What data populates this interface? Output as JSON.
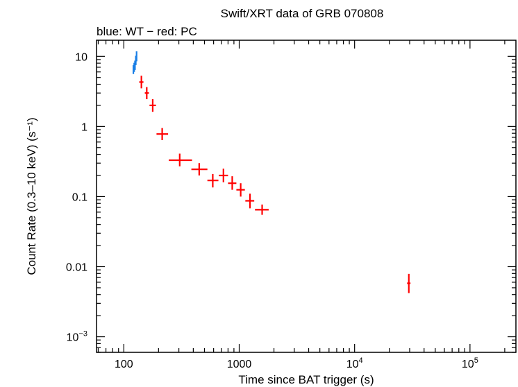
{
  "chart_data": {
    "type": "scatter",
    "title": "Swift/XRT data of GRB 070808",
    "subtitle": "blue: WT − red: PC",
    "xlabel": "Time since BAT trigger (s)",
    "ylabel": "Count Rate (0.3–10 keV) (s⁻¹)",
    "xscale": "log",
    "yscale": "log",
    "xlim": [
      58,
      250000
    ],
    "ylim": [
      0.0006,
      17
    ],
    "x_ticks": [
      {
        "value": 100,
        "base": "100",
        "exp": ""
      },
      {
        "value": 1000,
        "base": "1000",
        "exp": ""
      },
      {
        "value": 10000,
        "base": "10",
        "exp": "4"
      },
      {
        "value": 100000,
        "base": "10",
        "exp": "5"
      }
    ],
    "y_ticks": [
      {
        "value": 10,
        "base": "10",
        "exp": ""
      },
      {
        "value": 1,
        "base": "1",
        "exp": ""
      },
      {
        "value": 0.1,
        "base": "0.1",
        "exp": ""
      },
      {
        "value": 0.01,
        "base": "0.01",
        "exp": ""
      },
      {
        "value": 0.001,
        "base": "10",
        "exp": "−3"
      }
    ],
    "series": [
      {
        "name": "WT",
        "color": "#1a7fe6",
        "points": [
          {
            "x": 121,
            "y": 6.5,
            "xlo": 120,
            "xhi": 122,
            "ylo": 5.6,
            "yhi": 7.5
          },
          {
            "x": 123,
            "y": 7.0,
            "xlo": 122,
            "xhi": 124,
            "ylo": 6.0,
            "yhi": 8.1
          },
          {
            "x": 125,
            "y": 7.5,
            "xlo": 124,
            "xhi": 126,
            "ylo": 6.4,
            "yhi": 8.7
          },
          {
            "x": 127,
            "y": 8.8,
            "xlo": 126,
            "xhi": 128,
            "ylo": 7.5,
            "yhi": 10.2
          },
          {
            "x": 129,
            "y": 10.0,
            "xlo": 128,
            "xhi": 130,
            "ylo": 8.5,
            "yhi": 11.8
          }
        ]
      },
      {
        "name": "PC",
        "color": "#ff0000",
        "points": [
          {
            "x": 142,
            "y": 4.3,
            "xlo": 136,
            "xhi": 148,
            "ylo": 3.5,
            "yhi": 5.3
          },
          {
            "x": 158,
            "y": 3.0,
            "xlo": 152,
            "xhi": 165,
            "ylo": 2.45,
            "yhi": 3.65
          },
          {
            "x": 178,
            "y": 2.0,
            "xlo": 167,
            "xhi": 190,
            "ylo": 1.62,
            "yhi": 2.45
          },
          {
            "x": 215,
            "y": 0.78,
            "xlo": 192,
            "xhi": 242,
            "ylo": 0.64,
            "yhi": 0.95
          },
          {
            "x": 305,
            "y": 0.33,
            "xlo": 245,
            "xhi": 390,
            "ylo": 0.27,
            "yhi": 0.41
          },
          {
            "x": 450,
            "y": 0.245,
            "xlo": 385,
            "xhi": 530,
            "ylo": 0.2,
            "yhi": 0.3
          },
          {
            "x": 590,
            "y": 0.17,
            "xlo": 530,
            "xhi": 660,
            "ylo": 0.135,
            "yhi": 0.21
          },
          {
            "x": 730,
            "y": 0.2,
            "xlo": 665,
            "xhi": 800,
            "ylo": 0.16,
            "yhi": 0.25
          },
          {
            "x": 870,
            "y": 0.155,
            "xlo": 800,
            "xhi": 945,
            "ylo": 0.125,
            "yhi": 0.195
          },
          {
            "x": 1030,
            "y": 0.125,
            "xlo": 945,
            "xhi": 1120,
            "ylo": 0.1,
            "yhi": 0.155
          },
          {
            "x": 1240,
            "y": 0.087,
            "xlo": 1130,
            "xhi": 1350,
            "ylo": 0.068,
            "yhi": 0.11
          },
          {
            "x": 1580,
            "y": 0.065,
            "xlo": 1370,
            "xhi": 1800,
            "ylo": 0.055,
            "yhi": 0.077
          },
          {
            "x": 29500,
            "y": 0.0058,
            "xlo": 28500,
            "xhi": 30500,
            "ylo": 0.0042,
            "yhi": 0.0079
          }
        ]
      }
    ]
  }
}
